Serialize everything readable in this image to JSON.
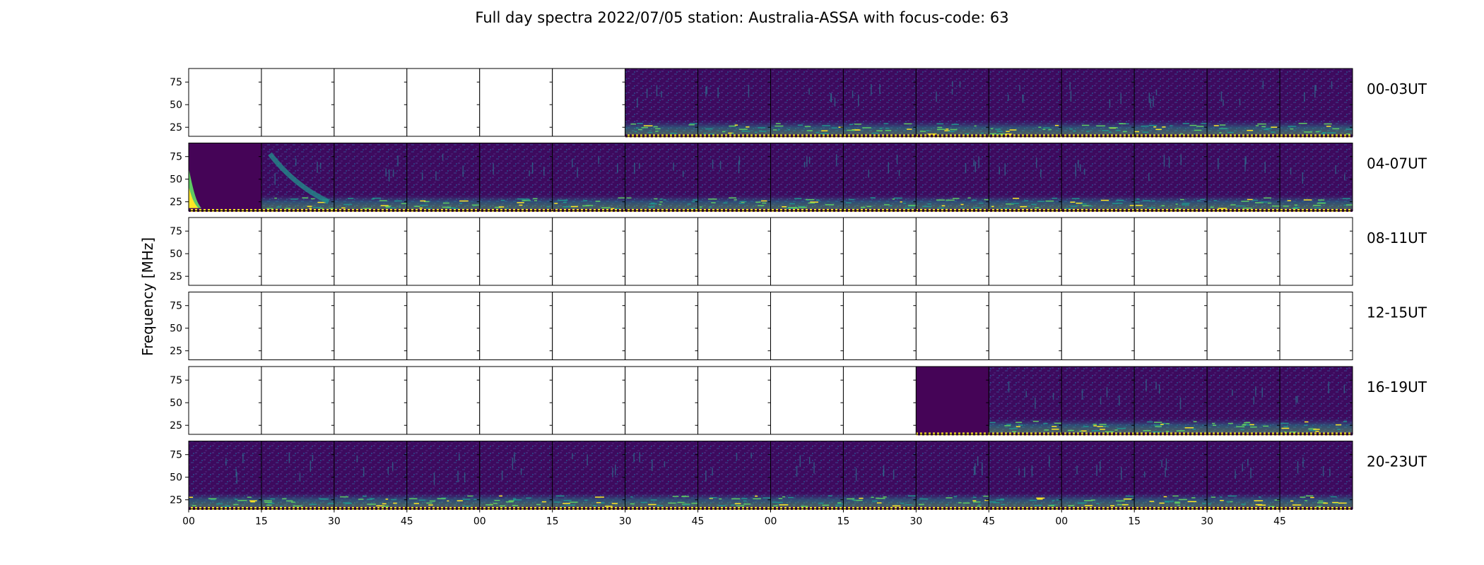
{
  "chart_data": {
    "type": "heatmap",
    "title": "Full day spectra 2022/07/05 station: Australia-ASSA with focus-code: 63",
    "ylabel": "Frequency [MHz]",
    "xlabel": "",
    "ylim": [
      15,
      90
    ],
    "yticks": [
      25,
      50,
      75
    ],
    "xticks": [
      "00",
      "15",
      "30",
      "45",
      "00",
      "15",
      "30",
      "45",
      "00",
      "15",
      "30",
      "45",
      "00",
      "15",
      "30",
      "45"
    ],
    "panels_per_row": 16,
    "panel_minutes": 15,
    "rows": [
      {
        "label": "00-03UT",
        "has_data": [
          false,
          false,
          false,
          false,
          false,
          false,
          true,
          true,
          true,
          true,
          true,
          true,
          true,
          true,
          true,
          true
        ],
        "burst_panels": [],
        "quiet_panels": []
      },
      {
        "label": "04-07UT",
        "has_data": [
          true,
          true,
          true,
          true,
          true,
          true,
          true,
          true,
          true,
          true,
          true,
          true,
          true,
          true,
          true,
          true
        ],
        "burst_panels": [
          0,
          1
        ],
        "quiet_panels": [
          0
        ]
      },
      {
        "label": "08-11UT",
        "has_data": [
          false,
          false,
          false,
          false,
          false,
          false,
          false,
          false,
          false,
          false,
          false,
          false,
          false,
          false,
          false,
          false
        ],
        "burst_panels": [],
        "quiet_panels": []
      },
      {
        "label": "12-15UT",
        "has_data": [
          false,
          false,
          false,
          false,
          false,
          false,
          false,
          false,
          false,
          false,
          false,
          false,
          false,
          false,
          false,
          false
        ],
        "burst_panels": [],
        "quiet_panels": []
      },
      {
        "label": "16-19UT",
        "has_data": [
          false,
          false,
          false,
          false,
          false,
          false,
          false,
          false,
          false,
          false,
          true,
          true,
          true,
          true,
          true,
          true
        ],
        "burst_panels": [],
        "quiet_panels": [
          10
        ]
      },
      {
        "label": "20-23UT",
        "has_data": [
          true,
          true,
          true,
          true,
          true,
          true,
          true,
          true,
          true,
          true,
          true,
          true,
          true,
          true,
          true,
          true
        ],
        "burst_panels": [],
        "quiet_panels": []
      }
    ],
    "colormap": "viridis",
    "colors": {
      "low": "#440154",
      "mid": "#3b528b",
      "teal": "#21918c",
      "green": "#5ec962",
      "high": "#fde725"
    }
  }
}
